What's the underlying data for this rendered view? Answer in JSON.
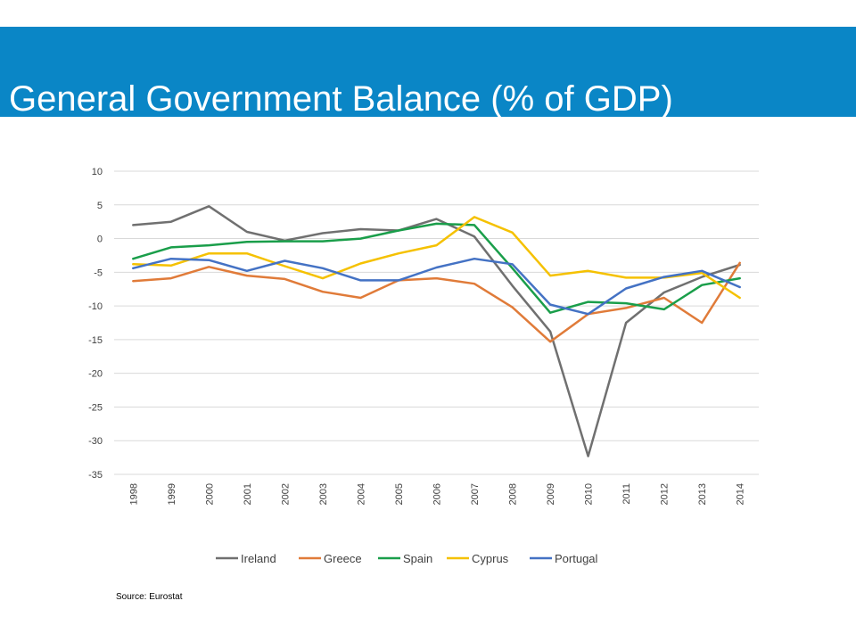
{
  "slide": {
    "title": "General Government Balance (% of GDP)",
    "source": "Source: Eurostat",
    "title_bar_color": "#0a86c6"
  },
  "chart_data": {
    "type": "line",
    "title": "",
    "xlabel": "",
    "ylabel": "",
    "x": [
      "1998",
      "1999",
      "2000",
      "2001",
      "2002",
      "2003",
      "2004",
      "2005",
      "2006",
      "2007",
      "2008",
      "2009",
      "2010",
      "2011",
      "2012",
      "2013",
      "2014"
    ],
    "ylim": [
      -35,
      10
    ],
    "yticks": [
      10,
      5,
      0,
      -5,
      -10,
      -15,
      -20,
      -25,
      -30,
      -35
    ],
    "grid": true,
    "legend_position": "bottom",
    "series": [
      {
        "name": "Ireland",
        "color": "#707070",
        "values": [
          2.0,
          2.5,
          4.8,
          1.0,
          -0.3,
          0.8,
          1.4,
          1.2,
          2.9,
          0.3,
          -7.0,
          -13.8,
          -32.3,
          -12.5,
          -8.0,
          -5.7,
          -3.9
        ]
      },
      {
        "name": "Greece",
        "color": "#e07b39",
        "values": [
          -6.3,
          -5.9,
          -4.2,
          -5.5,
          -6.0,
          -7.9,
          -8.8,
          -6.2,
          -5.9,
          -6.7,
          -10.2,
          -15.3,
          -11.2,
          -10.3,
          -8.8,
          -12.5,
          -3.6
        ]
      },
      {
        "name": "Spain",
        "color": "#1a9e4a",
        "values": [
          -3.0,
          -1.3,
          -1.0,
          -0.5,
          -0.4,
          -0.4,
          0.0,
          1.2,
          2.2,
          2.0,
          -4.4,
          -11.0,
          -9.4,
          -9.6,
          -10.5,
          -6.9,
          -5.9
        ]
      },
      {
        "name": "Cyprus",
        "color": "#f5c100",
        "values": [
          -3.8,
          -4.0,
          -2.2,
          -2.2,
          -4.1,
          -5.9,
          -3.7,
          -2.2,
          -1.0,
          3.2,
          0.9,
          -5.5,
          -4.8,
          -5.8,
          -5.8,
          -5.1,
          -8.8
        ]
      },
      {
        "name": "Portugal",
        "color": "#4472c4",
        "values": [
          -4.4,
          -3.0,
          -3.2,
          -4.8,
          -3.3,
          -4.4,
          -6.2,
          -6.2,
          -4.3,
          -3.0,
          -3.8,
          -9.8,
          -11.2,
          -7.4,
          -5.7,
          -4.8,
          -7.2
        ]
      }
    ]
  }
}
